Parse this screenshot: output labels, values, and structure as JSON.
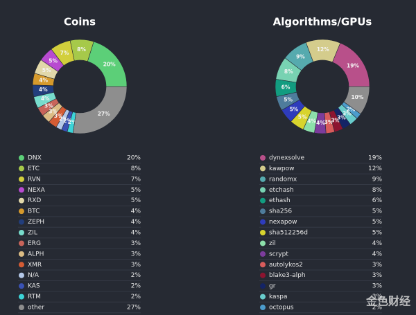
{
  "chart_data": [
    {
      "type": "pie",
      "title": "Coins",
      "categories": [
        "DNX",
        "ETC",
        "RVN",
        "NEXA",
        "RXD",
        "BTC",
        "ZEPH",
        "ZIL",
        "ERG",
        "ALPH",
        "XMR",
        "N/A",
        "KAS",
        "RTM",
        "other"
      ],
      "values": [
        20,
        8,
        7,
        5,
        5,
        4,
        4,
        4,
        3,
        3,
        3,
        2,
        2,
        2,
        27
      ],
      "value_labels": [
        "20%",
        "8%",
        "7%",
        "5%",
        "5%",
        "4%",
        "4%",
        "4%",
        "3%",
        "3%",
        "3%",
        "2%",
        "2%",
        "2%",
        "27%"
      ],
      "colors": [
        "#5ccf78",
        "#a6c94a",
        "#d2cf3c",
        "#b84ad0",
        "#e2d8aa",
        "#d69a2c",
        "#223e7c",
        "#78dccc",
        "#c8645a",
        "#dcbc84",
        "#d45c34",
        "#b4c8e8",
        "#3a52b4",
        "#3cd4d8",
        "#8e8e8e"
      ]
    },
    {
      "type": "pie",
      "title": "Algorithms/GPUs",
      "categories": [
        "dynexsolve",
        "kawpow",
        "randomx",
        "etchash",
        "ethash",
        "sha256",
        "nexapow",
        "sha512256d",
        "zil",
        "scrypt",
        "autolykos2",
        "blake3-alph",
        "gr",
        "kaspa",
        "octopus",
        null
      ],
      "values": [
        19,
        12,
        9,
        8,
        6,
        5,
        5,
        5,
        4,
        4,
        3,
        3,
        3,
        3,
        2,
        10
      ],
      "value_labels": [
        "19%",
        "12%",
        "9%",
        "8%",
        "6%",
        "5%",
        "5%",
        "5%",
        "4%",
        "4%",
        "3%",
        "3%",
        "3%",
        "3%",
        "2%",
        "10%"
      ],
      "colors": [
        "#b8508a",
        "#d4cc8c",
        "#56aaae",
        "#78d2b2",
        "#129c80",
        "#4e7c9c",
        "#2e3cbc",
        "#d8d42e",
        "#8ce0aa",
        "#7c3c9c",
        "#d85c5c",
        "#8c1430",
        "#142466",
        "#68cccc",
        "#4c9ccc",
        "#8e8e8e"
      ]
    }
  ],
  "watermark": "金色财经"
}
